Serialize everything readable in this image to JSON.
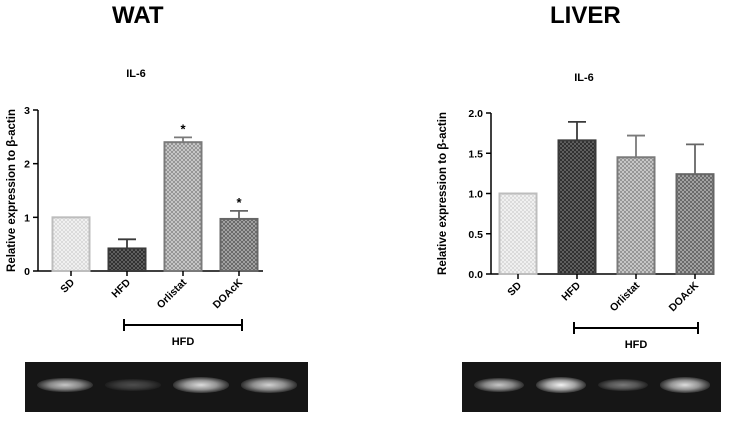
{
  "panels": {
    "wat": {
      "title": "WAT"
    },
    "liver": {
      "title": "LIVER"
    }
  },
  "colors": {
    "bar_sd_fill": "#efefef",
    "bar_sd_stroke": "#bdbdbd",
    "bar_hfd_fill": "#4a4a4a",
    "bar_hfd_stroke": "#3a3a3a",
    "bar_orlistat_fill": "#b5b5b5",
    "bar_orlistat_stroke": "#7a7a7a",
    "bar_doack_fill": "#8c8c8c",
    "bar_doack_stroke": "#666666",
    "axis": "#000000",
    "blot_background": "#161616"
  },
  "chart_data": [
    {
      "type": "bar",
      "id": "wat",
      "title": "IL-6",
      "ylabel": "Relative expression to β-actin",
      "xlabel": "",
      "categories": [
        "SD",
        "HFD",
        "Orlistat",
        "DOAcK"
      ],
      "values": [
        1.0,
        0.42,
        2.4,
        0.97
      ],
      "errors": [
        0.0,
        0.17,
        0.09,
        0.15
      ],
      "significance": [
        "",
        "",
        "*",
        "*"
      ],
      "ylim": [
        0,
        3
      ],
      "yticks": [
        "0",
        "1",
        "2",
        "3"
      ],
      "group_bracket": {
        "label": "HFD",
        "from": "HFD",
        "to": "DOAcK"
      },
      "grid": false,
      "legend": "none",
      "blot_bands": [
        0.8,
        0.25,
        0.9,
        0.85
      ]
    },
    {
      "type": "bar",
      "id": "liver",
      "title": "IL-6",
      "ylabel": "Relative expression to β-actin",
      "xlabel": "",
      "categories": [
        "SD",
        "HFD",
        "Orlistat",
        "DOAcK"
      ],
      "values": [
        1.0,
        1.66,
        1.45,
        1.24
      ],
      "errors": [
        0.0,
        0.23,
        0.27,
        0.37
      ],
      "significance": [
        "",
        "",
        "",
        ""
      ],
      "ylim": [
        0,
        2.0
      ],
      "yticks": [
        "0.0",
        "0.5",
        "1.0",
        "1.5",
        "2.0"
      ],
      "group_bracket": {
        "label": "HFD",
        "from": "HFD",
        "to": "DOAcK"
      },
      "grid": false,
      "legend": "none",
      "blot_bands": [
        0.8,
        1.0,
        0.45,
        0.9
      ]
    }
  ]
}
